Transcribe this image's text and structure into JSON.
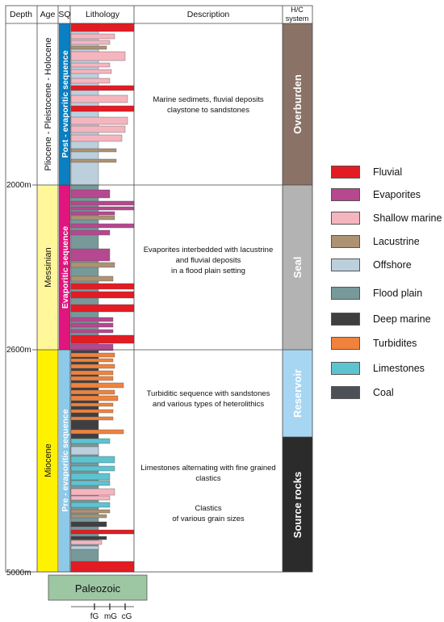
{
  "header": {
    "depth": "Depth",
    "age": "Age",
    "sq": "SQ",
    "lithology": "Lithology",
    "description": "Description",
    "hc_line1": "H/C",
    "hc_line2": "system"
  },
  "depth_labels": [
    "2000m",
    "2600m",
    "5000m"
  ],
  "ages": [
    {
      "label": "Pliocene - Pleistocene - Holocene",
      "color": "#ffffff"
    },
    {
      "label": "Messinian",
      "color": "#fff799"
    },
    {
      "label": "Miocene",
      "color": "#fff200"
    }
  ],
  "sequences": [
    {
      "label": "Post - evaporitic sequence",
      "color": "#0a7fc2"
    },
    {
      "label": "Evaporitic sequence",
      "color": "#e0157d"
    },
    {
      "label": "Pre - evaporitic sequence",
      "color": "#8dc9e8"
    }
  ],
  "descriptions": {
    "d1": [
      "Marine sedimets, fluvial deposits",
      "claystone to sandstones"
    ],
    "d2": [
      "Evaporites interbedded with lacustrine",
      "and fluvial deposits",
      "in a flood plain setting"
    ],
    "d3": [
      "Turbiditic sequence with sandstones",
      "and various types of heterolithics"
    ],
    "d4": [
      "Limestones alternating with fine grained",
      "clastics"
    ],
    "d5": [
      "Clastics",
      "of various grain sizes"
    ]
  },
  "hc_system": [
    {
      "label": "Overburden",
      "color": "#8b7266"
    },
    {
      "label": "Seal",
      "color": "#b3b3b3"
    },
    {
      "label": "Reservoir",
      "color": "#a7d6f2"
    },
    {
      "label": "Source rocks",
      "color": "#2b2b2b"
    }
  ],
  "basement": "Paleozoic",
  "grain_axis": [
    "fG",
    "mG",
    "cG"
  ],
  "legend": [
    {
      "label": "Fluvial",
      "color": "#e31b23"
    },
    {
      "label": "Evaporites",
      "color": "#b5488f"
    },
    {
      "label": "Shallow marine",
      "color": "#f5b5bf"
    },
    {
      "label": "Lacustrine",
      "color": "#ad9273"
    },
    {
      "label": "Offshore",
      "color": "#bccfdd"
    },
    {
      "label": "Flood plain",
      "color": "#77999a"
    },
    {
      "label": "Deep marine",
      "color": "#3f3f42"
    },
    {
      "label": "Turbidites",
      "color": "#f0823c"
    },
    {
      "label": "Limestones",
      "color": "#5ec3d0"
    },
    {
      "label": "Coal",
      "color": "#4d5157"
    }
  ]
}
